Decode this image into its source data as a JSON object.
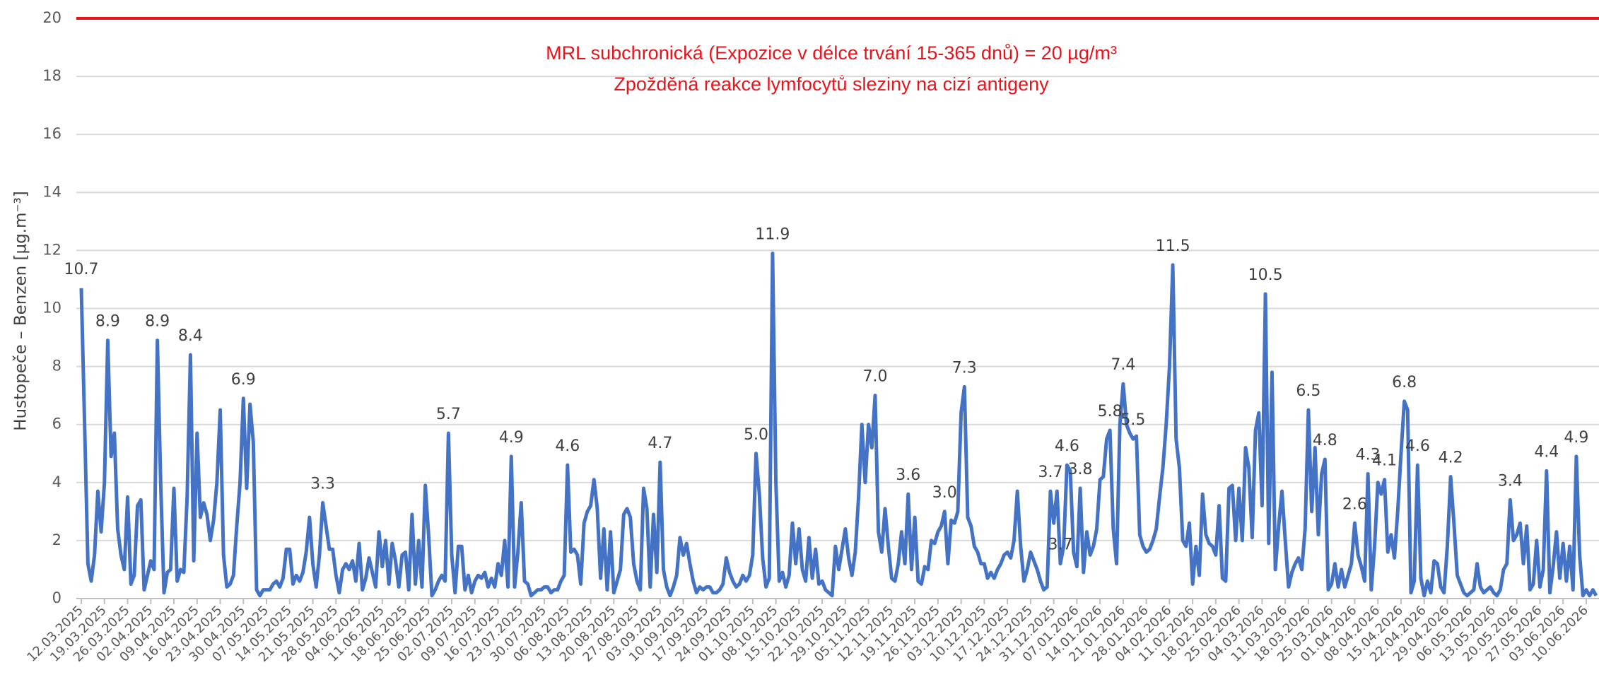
{
  "chart_data": {
    "type": "line",
    "y_label": "Hustopeče – Benzen  [µg.m⁻³]",
    "annotations": [
      "MRL subchronická (Expozice v délce trvání 15-365 dnů) = 20 µg/m³",
      "Zpožděná reakce lymfocytů sleziny na cizí antigeny"
    ],
    "reference_line": {
      "value": 20,
      "color": "#e8141c"
    },
    "ylim": [
      0,
      20
    ],
    "yticks": [
      0,
      2,
      4,
      6,
      8,
      10,
      12,
      14,
      16,
      18,
      20
    ],
    "grid": true,
    "color": "#4472c4",
    "categories": [
      "12.03.2025",
      null,
      null,
      null,
      null,
      null,
      null,
      "19.03.2025",
      null,
      null,
      null,
      null,
      null,
      null,
      "26.03.2025",
      null,
      null,
      null,
      null,
      null,
      null,
      "02.04.2025",
      null,
      null,
      null,
      null,
      null,
      null,
      "09.04.2025",
      null,
      null,
      null,
      null,
      null,
      null,
      "16.04.2025",
      null,
      null,
      null,
      null,
      null,
      null,
      "23.04.2025",
      null,
      null,
      null,
      null,
      null,
      null,
      "30.04.2025",
      null,
      null,
      null,
      null,
      null,
      null,
      "07.05.2025",
      null,
      null,
      null,
      null,
      null,
      null,
      "14.05.2025",
      null,
      null,
      null,
      null,
      null,
      null,
      "21.05.2025",
      null,
      null,
      null,
      null,
      null,
      null,
      "28.05.2025",
      null,
      null,
      null,
      null,
      null,
      null,
      "04.06.2025",
      null,
      null,
      null,
      null,
      null,
      null,
      "11.06.2025",
      null,
      null,
      null,
      null,
      null,
      null,
      "18.06.2025",
      null,
      null,
      null,
      null,
      null,
      null,
      "25.06.2025",
      null,
      null,
      null,
      null,
      null,
      null,
      "02.07.2025",
      null,
      null,
      null,
      null,
      null,
      null,
      "09.07.2025",
      null,
      null,
      null,
      null,
      null,
      null,
      "16.07.2025",
      null,
      null,
      null,
      null,
      null,
      null,
      "23.07.2025",
      null,
      null,
      null,
      null,
      null,
      null,
      "30.07.2025",
      null,
      null,
      null,
      null,
      null,
      null,
      "06.08.2025",
      null,
      null,
      null,
      null,
      null,
      null,
      "13.08.2025",
      null,
      null,
      null,
      null,
      null,
      null,
      "20.08.2025",
      null,
      null,
      null,
      null,
      null,
      null,
      "27.08.2025",
      null,
      null,
      null,
      null,
      null,
      null,
      "03.09.2025",
      null,
      null,
      null,
      null,
      null,
      null,
      "10.09.2025",
      null,
      null,
      null,
      null,
      null,
      null,
      "17.09.2025",
      null,
      null,
      null,
      null,
      null,
      null,
      "24.09.2025",
      null,
      null,
      null,
      null,
      null,
      null,
      "01.10.2025",
      null,
      null,
      null,
      null,
      null,
      null,
      "08.10.2025",
      null,
      null,
      null,
      null,
      null,
      null,
      "15.10.2025",
      null,
      null,
      null,
      null,
      null,
      null,
      "22.10.2025",
      null,
      null,
      null,
      null,
      null,
      null,
      "29.10.2025",
      null,
      null,
      null,
      null,
      null,
      null,
      "05.11.2025",
      null,
      null,
      null,
      null,
      null,
      null,
      "12.11.2025",
      null,
      null,
      null,
      null,
      null,
      null,
      "19.11.2025",
      null,
      null,
      null,
      null,
      null,
      null,
      "26.11.2025",
      null,
      null,
      null,
      null,
      null,
      null,
      "03.12.2025",
      null,
      null,
      null,
      null,
      null,
      null,
      "10.12.2025",
      null,
      null,
      null,
      null,
      null,
      null,
      "17.12.2025",
      null,
      null,
      null,
      null,
      null,
      null,
      "24.12.2025",
      null,
      null,
      null,
      null,
      null,
      null,
      "31.12.2025",
      null,
      null,
      null,
      null,
      null,
      null,
      "07.01.2026",
      null,
      null,
      null,
      null,
      null,
      null,
      "14.01.2026",
      null,
      null,
      null,
      null,
      null,
      null,
      "21.01.2026",
      null,
      null,
      null,
      null,
      null,
      null,
      "28.01.2026",
      null,
      null,
      null,
      null,
      null,
      null,
      "04.02.2026",
      null,
      null,
      null,
      null,
      null,
      null,
      "11.02.2026",
      null,
      null,
      null,
      null,
      null,
      null,
      "18.02.2026",
      null,
      null,
      null,
      null,
      null,
      null,
      "25.02.2026",
      null,
      null,
      null,
      null,
      null,
      null,
      "04.03.2026",
      null,
      null,
      null,
      null,
      null,
      null,
      "11.03.2026",
      null,
      null,
      null,
      null,
      null,
      null,
      "18.03.2026",
      null,
      null,
      null,
      null,
      null,
      null,
      "25.03.2026",
      null,
      null,
      null,
      null,
      null,
      null,
      "01.04.2026",
      null,
      null,
      null,
      null,
      null,
      null,
      "08.04.2026",
      null,
      null,
      null,
      null,
      null,
      null,
      "15.04.2026",
      null,
      null,
      null,
      null,
      null,
      null,
      "22.04.2026",
      null,
      null,
      null,
      null,
      null,
      null,
      "29.04.2026",
      null,
      null,
      null,
      null,
      null,
      null,
      "06.05.2026",
      null,
      null,
      null,
      null,
      null,
      null,
      "13.05.2026",
      null,
      null,
      null,
      null,
      null,
      null,
      "20.05.2026",
      null,
      null,
      null,
      null,
      null,
      null,
      "27.05.2026",
      null,
      null,
      null,
      null,
      null,
      null,
      "03.06.2026",
      null,
      null,
      null,
      null,
      null,
      null,
      "10.06.2026",
      null,
      null,
      null
    ],
    "values": [
      10.7,
      6.0,
      1.2,
      0.6,
      1.5,
      3.7,
      2.3,
      4.0,
      8.9,
      4.9,
      5.7,
      2.4,
      1.5,
      1.0,
      3.5,
      0.5,
      0.8,
      3.2,
      3.4,
      0.3,
      0.8,
      1.3,
      1.0,
      8.9,
      4.0,
      0.2,
      0.9,
      1.0,
      3.8,
      0.6,
      1.0,
      0.9,
      3.5,
      8.4,
      1.3,
      5.7,
      2.8,
      3.3,
      2.9,
      2.0,
      2.7,
      4.0,
      6.5,
      1.5,
      0.4,
      0.5,
      0.8,
      2.5,
      4.0,
      6.9,
      3.8,
      6.7,
      5.4,
      0.3,
      0.1,
      0.3,
      0.3,
      0.3,
      0.5,
      0.6,
      0.4,
      0.7,
      1.7,
      1.7,
      0.5,
      0.8,
      0.6,
      0.9,
      1.6,
      2.8,
      1.2,
      0.4,
      1.5,
      3.3,
      2.5,
      1.7,
      1.7,
      0.8,
      0.2,
      1.0,
      1.2,
      1.0,
      1.3,
      0.6,
      1.9,
      0.3,
      0.7,
      1.4,
      0.9,
      0.4,
      2.3,
      1.1,
      2.0,
      0.5,
      1.9,
      1.3,
      0.4,
      1.5,
      1.6,
      0.3,
      2.9,
      0.5,
      2.0,
      0.4,
      3.9,
      2.2,
      0.1,
      0.3,
      0.6,
      0.8,
      0.6,
      5.7,
      1.5,
      0.2,
      1.8,
      1.8,
      0.3,
      0.8,
      0.2,
      0.6,
      0.8,
      0.7,
      0.9,
      0.4,
      0.7,
      0.4,
      1.2,
      0.8,
      2.0,
      0.4,
      4.9,
      0.4,
      1.6,
      3.3,
      0.6,
      0.5,
      0.1,
      0.2,
      0.3,
      0.3,
      0.4,
      0.4,
      0.2,
      0.3,
      0.3,
      0.6,
      0.8,
      4.6,
      1.6,
      1.7,
      1.5,
      0.5,
      2.6,
      3.0,
      3.2,
      4.1,
      3.1,
      0.7,
      2.4,
      0.3,
      2.3,
      0.2,
      0.6,
      1.0,
      2.9,
      3.1,
      2.8,
      1.2,
      0.6,
      0.3,
      3.8,
      3.1,
      0.4,
      2.9,
      0.9,
      4.7,
      1.0,
      0.4,
      0.1,
      0.4,
      0.8,
      2.1,
      1.5,
      1.9,
      1.2,
      0.6,
      0.2,
      0.4,
      0.3,
      0.4,
      0.4,
      0.2,
      0.2,
      0.3,
      0.5,
      1.4,
      0.9,
      0.6,
      0.4,
      0.5,
      0.8,
      0.6,
      0.8,
      1.5,
      5.0,
      3.6,
      1.4,
      0.4,
      0.7,
      11.9,
      4.0,
      0.6,
      0.9,
      0.4,
      0.8,
      2.6,
      1.2,
      2.4,
      1.0,
      0.6,
      2.1,
      0.7,
      1.7,
      0.5,
      0.6,
      0.3,
      0.2,
      0.1,
      1.8,
      1.0,
      1.7,
      2.4,
      1.4,
      0.8,
      1.6,
      3.5,
      6.0,
      4.0,
      6.0,
      5.2,
      7.0,
      2.3,
      1.6,
      3.1,
      1.8,
      0.7,
      0.6,
      1.2,
      2.3,
      1.2,
      3.6,
      1.0,
      2.8,
      0.6,
      0.5,
      1.1,
      1.0,
      2.0,
      1.9,
      2.3,
      2.5,
      3.0,
      1.2,
      2.7,
      2.6,
      3.0,
      6.4,
      7.3,
      2.8,
      2.5,
      1.8,
      1.6,
      1.2,
      1.2,
      0.7,
      0.9,
      0.7,
      1.0,
      1.2,
      1.5,
      1.6,
      1.4,
      2.0,
      3.7,
      1.8,
      0.6,
      1.0,
      1.6,
      1.3,
      1.0,
      0.6,
      0.3,
      0.4,
      3.7,
      2.6,
      3.7,
      1.2,
      1.8,
      4.6,
      4.4,
      1.6,
      1.1,
      3.8,
      0.9,
      2.3,
      1.5,
      1.8,
      2.4,
      4.1,
      4.2,
      5.5,
      5.8,
      2.4,
      1.2,
      6.0,
      7.4,
      6.0,
      5.7,
      5.5,
      5.6,
      2.2,
      1.8,
      1.6,
      1.7,
      2.0,
      2.4,
      3.5,
      4.5,
      6.0,
      8.0,
      11.5,
      5.5,
      4.5,
      2.0,
      1.8,
      2.6,
      0.5,
      1.8,
      0.8,
      3.6,
      2.2,
      1.9,
      1.8,
      1.5,
      3.2,
      0.7,
      0.6,
      3.8,
      3.9,
      2.0,
      3.8,
      2.0,
      5.2,
      4.5,
      2.1,
      5.8,
      6.4,
      3.2,
      10.5,
      1.9,
      7.8,
      1.0,
      2.5,
      3.7,
      2.0,
      0.4,
      0.9,
      1.2,
      1.4,
      1.0,
      2.4,
      6.5,
      3.0,
      5.2,
      2.2,
      4.3,
      4.8,
      0.3,
      0.5,
      1.2,
      0.4,
      1.0,
      0.4,
      0.8,
      1.2,
      2.6,
      1.5,
      1.1,
      0.6,
      4.3,
      0.3,
      1.8,
      4.0,
      3.6,
      4.1,
      1.6,
      2.2,
      1.4,
      3.0,
      5.0,
      6.8,
      6.5,
      0.2,
      0.6,
      4.6,
      0.7,
      0.1,
      0.6,
      0.2,
      1.3,
      1.2,
      0.4,
      0.2,
      1.8,
      4.2,
      2.6,
      0.8,
      0.5,
      0.2,
      0.1,
      0.2,
      0.3,
      1.2,
      0.4,
      0.2,
      0.3,
      0.4,
      0.2,
      0.1,
      0.3,
      1.0,
      1.2,
      3.4,
      2.0,
      2.2,
      2.6,
      1.2,
      2.5,
      0.3,
      0.5,
      2.0,
      0.4,
      1.0,
      4.4,
      0.2,
      1.1,
      2.3,
      0.7,
      1.9,
      0.6,
      1.8,
      0.3,
      4.9,
      1.5,
      0.1,
      0.3,
      0.1,
      0.3,
      0.1
    ],
    "value_labels": {
      "0": "10.7",
      "8": "8.9",
      "23": "8.9",
      "33": "8.4",
      "49": "6.9",
      "73": "3.3",
      "111": "5.7",
      "130": "4.9",
      "147": "4.6",
      "175": "4.7",
      "204": "5.0",
      "209": "11.9",
      "240": "7.0",
      "250": "3.6",
      "261": "3.0",
      "267": "7.3",
      "293": "3.7",
      "296": "3.7",
      "298": "4.6",
      "302": "3.8",
      "311": "5.8",
      "315": "7.4",
      "318": "5.5",
      "330": "11.5",
      "358": "10.5",
      "371": "6.5",
      "376": "4.8",
      "385": "2.6",
      "389": "4.3",
      "394": "4.1",
      "400": "6.8",
      "404": "4.6",
      "414": "4.2",
      "432": "3.4",
      "443": "4.4",
      "452": "4.9"
    }
  }
}
